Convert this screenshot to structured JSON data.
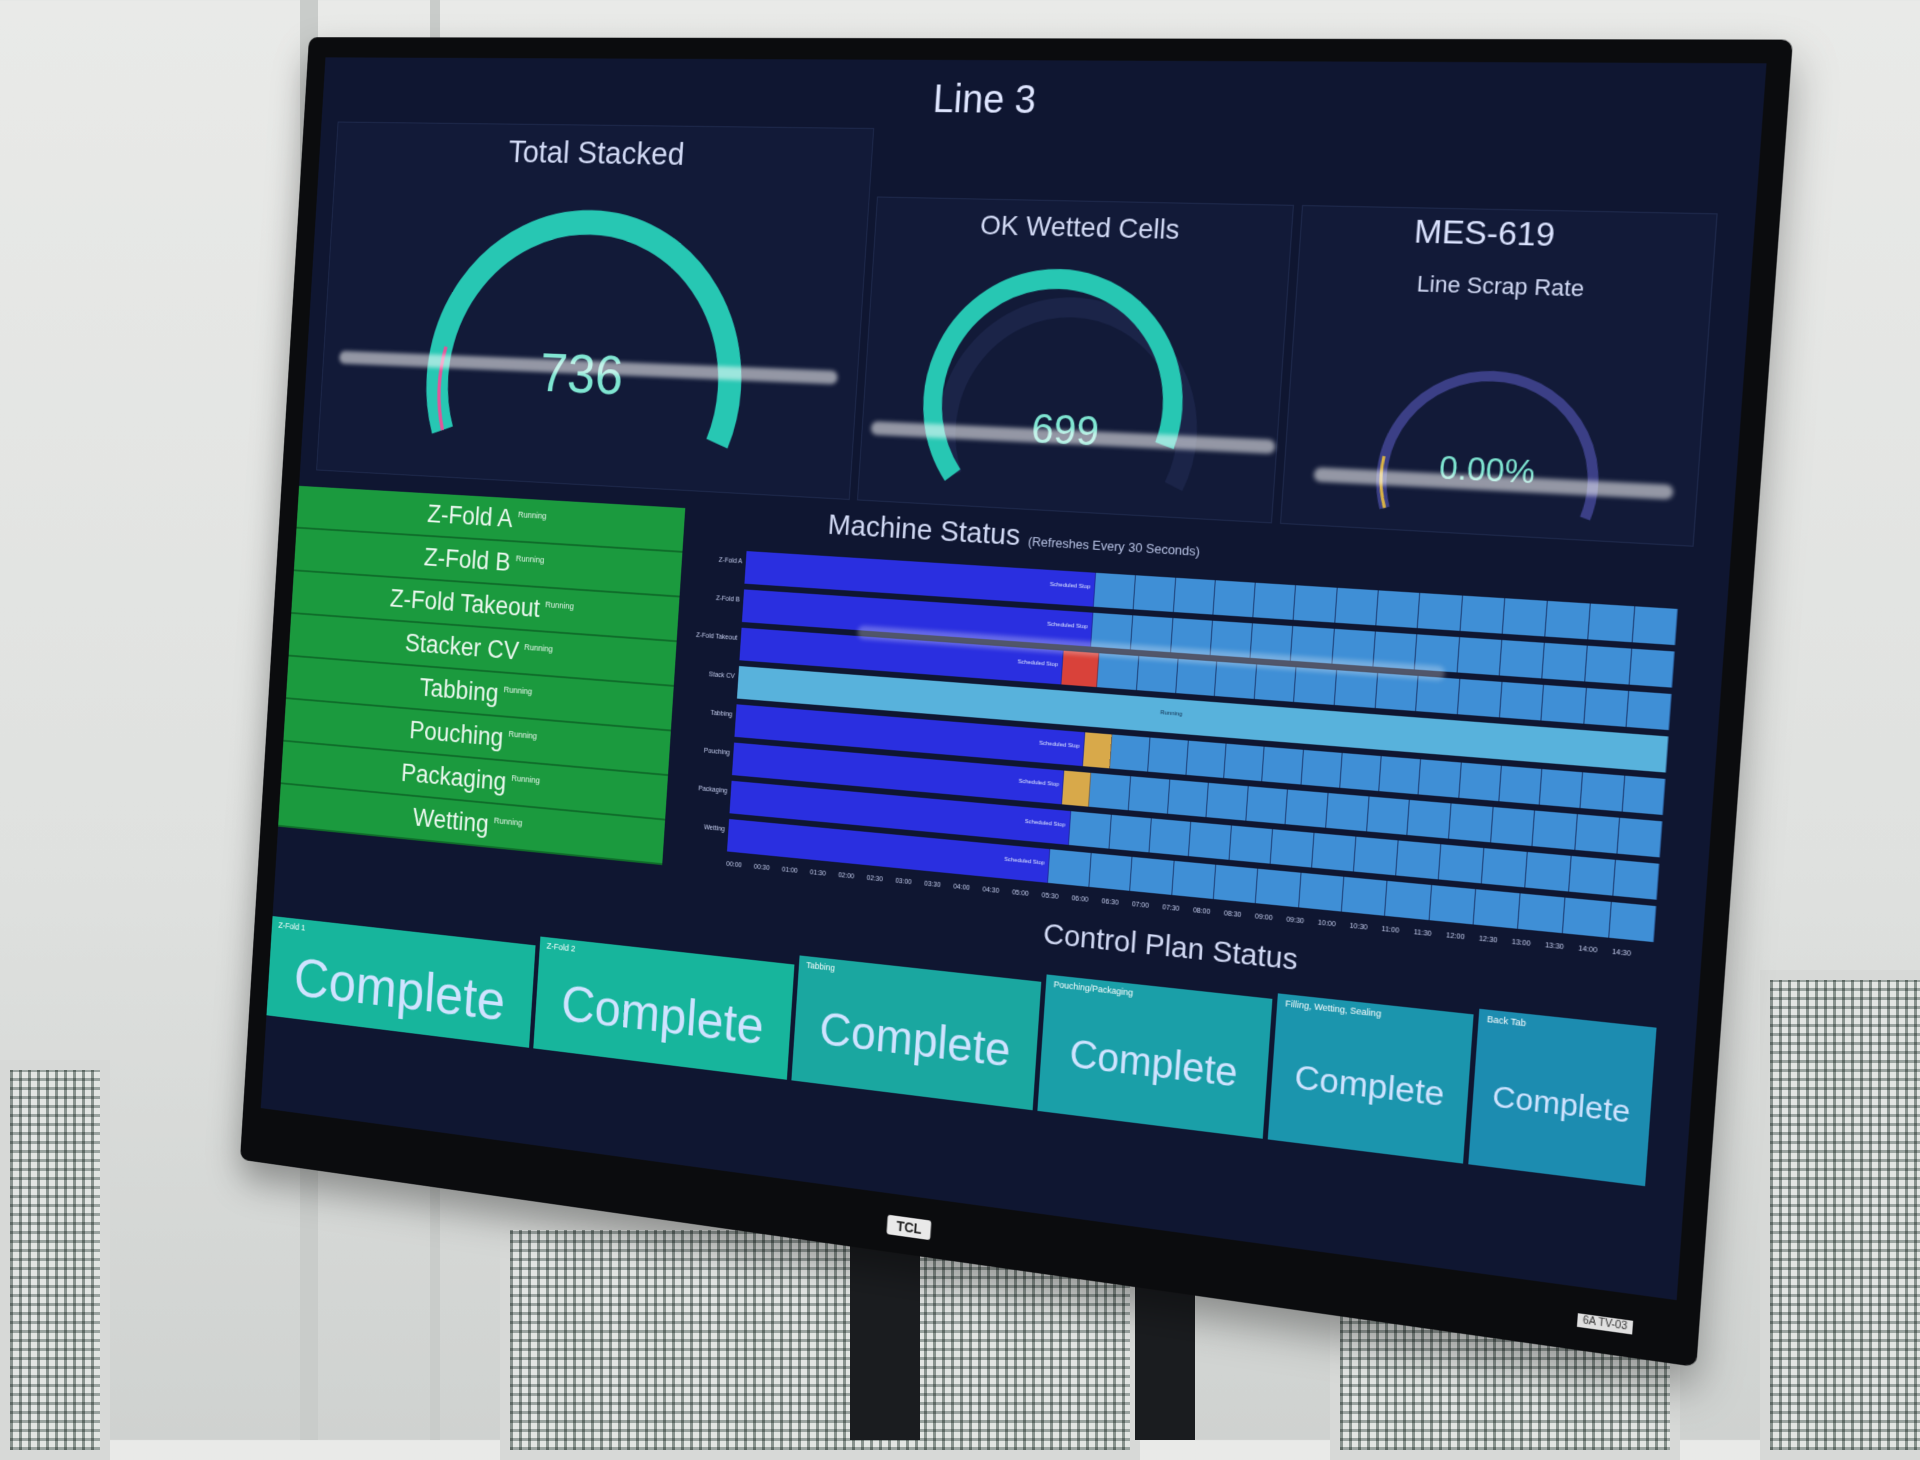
{
  "dashboard": {
    "title": "Line 3",
    "gauges": [
      {
        "label": "Total Stacked",
        "value": "736",
        "fraction": 1.0
      },
      {
        "label": "OK Wetted Cells",
        "value": "699",
        "fraction": 0.95
      },
      {
        "label": "Line Scrap Rate",
        "value": "0.00%",
        "fraction": 0.0
      }
    ],
    "mes_label": "MES-619",
    "machines": [
      {
        "name": "Z-Fold A",
        "state": "Running"
      },
      {
        "name": "Z-Fold B",
        "state": "Running"
      },
      {
        "name": "Z-Fold Takeout",
        "state": "Running"
      },
      {
        "name": "Stacker CV",
        "state": "Running"
      },
      {
        "name": "Tabbing",
        "state": "Running"
      },
      {
        "name": "Pouching",
        "state": "Running"
      },
      {
        "name": "Packaging",
        "state": "Running"
      },
      {
        "name": "Wetting",
        "state": "Running"
      }
    ],
    "machine_status": {
      "title": "Machine Status",
      "subtitle": "(Refreshes Every 30 Seconds)",
      "lanes": [
        "Z-Fold A",
        "Z-Fold B",
        "Z-Fold Takeout",
        "Stack CV",
        "Tabbing",
        "Pouching",
        "Packaging",
        "Wetting"
      ],
      "lane_notes": {
        "scheduled_stop": "Scheduled Stop",
        "running": "Running"
      },
      "time_ticks": [
        "00:00",
        "00:30",
        "01:00",
        "01:30",
        "02:00",
        "02:30",
        "03:00",
        "03:30",
        "04:00",
        "04:30",
        "05:00",
        "05:30",
        "06:00",
        "06:30",
        "07:00",
        "07:30",
        "08:00",
        "08:30",
        "09:00",
        "09:30",
        "10:00",
        "10:30",
        "11:00",
        "11:30",
        "12:00",
        "12:30",
        "13:00",
        "13:30",
        "14:00",
        "14:30"
      ]
    },
    "control_plan": {
      "title": "Control Plan Status",
      "tiles": [
        {
          "label": "Z-Fold 1",
          "status": "Complete"
        },
        {
          "label": "Z-Fold 2",
          "status": "Complete"
        },
        {
          "label": "Tabbing",
          "status": "Complete"
        },
        {
          "label": "Pouching/Packaging",
          "status": "Complete"
        },
        {
          "label": "Filling, Wetting, Sealing",
          "status": "Complete"
        },
        {
          "label": "Back Tab",
          "status": "Complete"
        }
      ]
    },
    "colors": {
      "running_green": "#1b9a3e",
      "scheduled_stop_blue": "#2a2fe0",
      "running_lightblue": "#3f8fd6",
      "gauge_teal": "#27c7b3",
      "complete_teal": "#17b59c"
    }
  },
  "hardware": {
    "brand": "TCL",
    "asset_tag": "6A TV-03"
  }
}
